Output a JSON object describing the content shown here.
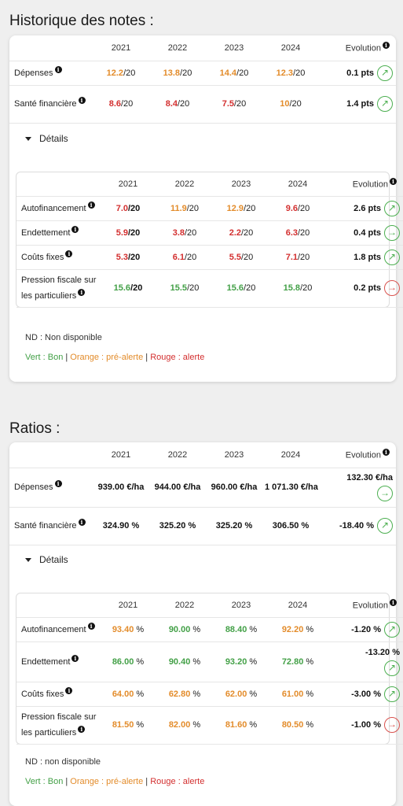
{
  "notes": {
    "title": "Historique des notes :",
    "years": [
      "2021",
      "2022",
      "2023",
      "2024"
    ],
    "evolution_label": "Evolution",
    "rows": [
      {
        "label": "Dépenses",
        "cells": [
          {
            "v": "12.2",
            "s": "/20",
            "c": "orange"
          },
          {
            "v": "13.8",
            "s": "/20",
            "c": "orange"
          },
          {
            "v": "14.4",
            "s": "/20",
            "c": "orange"
          },
          {
            "v": "12.3",
            "s": "/20",
            "c": "orange"
          }
        ],
        "evo": "0.1 pts",
        "dir": "green",
        "arrow": "↗"
      },
      {
        "label": "Santé financière",
        "cells": [
          {
            "v": "8.6",
            "s": "/20",
            "c": "red"
          },
          {
            "v": "8.4",
            "s": "/20",
            "c": "red"
          },
          {
            "v": "7.5",
            "s": "/20",
            "c": "red"
          },
          {
            "v": "10",
            "s": "/20",
            "c": "orange"
          }
        ],
        "evo": "1.4 pts",
        "dir": "green",
        "arrow": "↗"
      }
    ],
    "details_label": "Détails",
    "details_rows": [
      {
        "label": "Autofinancement",
        "cells": [
          {
            "v": "7.0",
            "s": "/20",
            "c": "red",
            "b": true
          },
          {
            "v": "11.9",
            "s": "/20",
            "c": "orange"
          },
          {
            "v": "12.9",
            "s": "/20",
            "c": "orange"
          },
          {
            "v": "9.6",
            "s": "/20",
            "c": "red"
          }
        ],
        "evo": "2.6 pts",
        "dir": "green",
        "arrow": "↗"
      },
      {
        "label": "Endettement",
        "cells": [
          {
            "v": "5.9",
            "s": "/20",
            "c": "red",
            "b": true
          },
          {
            "v": "3.8",
            "s": "/20",
            "c": "red"
          },
          {
            "v": "2.2",
            "s": "/20",
            "c": "red"
          },
          {
            "v": "6.3",
            "s": "/20",
            "c": "red"
          }
        ],
        "evo": "0.4 pts",
        "dir": "green",
        "arrow": "→"
      },
      {
        "label": "Coûts fixes",
        "cells": [
          {
            "v": "5.3",
            "s": "/20",
            "c": "red",
            "b": true
          },
          {
            "v": "6.1",
            "s": "/20",
            "c": "red"
          },
          {
            "v": "5.5",
            "s": "/20",
            "c": "red"
          },
          {
            "v": "7.1",
            "s": "/20",
            "c": "red"
          }
        ],
        "evo": "1.8 pts",
        "dir": "green",
        "arrow": "↗"
      },
      {
        "label": "Pression fiscale sur les particuliers",
        "cells": [
          {
            "v": "15.6",
            "s": "/20",
            "c": "green",
            "b": true
          },
          {
            "v": "15.5",
            "s": "/20",
            "c": "green"
          },
          {
            "v": "15.6",
            "s": "/20",
            "c": "green"
          },
          {
            "v": "15.8",
            "s": "/20",
            "c": "green"
          }
        ],
        "evo": "0.2 pts",
        "dir": "red",
        "arrow": "→"
      }
    ],
    "nd_label": "ND : Non disponible",
    "legend": {
      "green": "Vert : Bon",
      "sep": " | ",
      "orange": "Orange : pré-alerte",
      "red": "Rouge : alerte"
    }
  },
  "ratios": {
    "title": "Ratios :",
    "years": [
      "2021",
      "2022",
      "2023",
      "2024"
    ],
    "evolution_label": "Evolution",
    "rows": [
      {
        "label": "Dépenses",
        "cells": [
          {
            "v": "939.00 €/ha",
            "c": "black"
          },
          {
            "v": "944.00 €/ha",
            "c": "black"
          },
          {
            "v": "960.00 €/ha",
            "c": "black"
          },
          {
            "v": "1 071.30 €/ha",
            "c": "black"
          }
        ],
        "evo": "132.30 €/ha",
        "dir": "green",
        "arrow": "→",
        "wrap": true
      },
      {
        "label": "Santé financière",
        "cells": [
          {
            "v": "324.90 %",
            "c": "black"
          },
          {
            "v": "325.20 %",
            "c": "black"
          },
          {
            "v": "325.20 %",
            "c": "black"
          },
          {
            "v": "306.50 %",
            "c": "black"
          }
        ],
        "evo": "-18.40 %",
        "dir": "green",
        "arrow": "↗"
      }
    ],
    "details_label": "Détails",
    "details_rows": [
      {
        "label": "Autofinancement",
        "cells": [
          {
            "v": "93.40",
            "s": " %",
            "c": "orange"
          },
          {
            "v": "90.00",
            "s": " %",
            "c": "green"
          },
          {
            "v": "88.40",
            "s": " %",
            "c": "green"
          },
          {
            "v": "92.20",
            "s": " %",
            "c": "orange"
          }
        ],
        "evo": "-1.20 %",
        "dir": "green",
        "arrow": "↗"
      },
      {
        "label": "Endettement",
        "cells": [
          {
            "v": "86.00",
            "s": " %",
            "c": "green"
          },
          {
            "v": "90.40",
            "s": " %",
            "c": "green"
          },
          {
            "v": "93.20",
            "s": " %",
            "c": "green"
          },
          {
            "v": "72.80",
            "s": " %",
            "c": "green"
          }
        ],
        "evo": "-13.20 %",
        "dir": "green",
        "arrow": "↗",
        "wrap": true
      },
      {
        "label": "Coûts fixes",
        "cells": [
          {
            "v": "64.00",
            "s": " %",
            "c": "orange"
          },
          {
            "v": "62.80",
            "s": " %",
            "c": "orange"
          },
          {
            "v": "62.00",
            "s": " %",
            "c": "orange"
          },
          {
            "v": "61.00",
            "s": " %",
            "c": "orange"
          }
        ],
        "evo": "-3.00 %",
        "dir": "green",
        "arrow": "↗"
      },
      {
        "label": "Pression fiscale sur les particuliers",
        "cells": [
          {
            "v": "81.50",
            "s": " %",
            "c": "orange"
          },
          {
            "v": "82.00",
            "s": " %",
            "c": "orange"
          },
          {
            "v": "81.60",
            "s": " %",
            "c": "orange"
          },
          {
            "v": "80.50",
            "s": " %",
            "c": "orange"
          }
        ],
        "evo": "-1.00 %",
        "dir": "red",
        "arrow": "→"
      }
    ],
    "nd_label": "ND : non disponible",
    "legend": {
      "green": "Vert : Bon",
      "sep": " | ",
      "orange": "Orange : pré-alerte",
      "red": "Rouge : alerte"
    }
  },
  "colors": {
    "green": "#43a047",
    "orange": "#e38c2b",
    "red": "#d32f2f"
  }
}
